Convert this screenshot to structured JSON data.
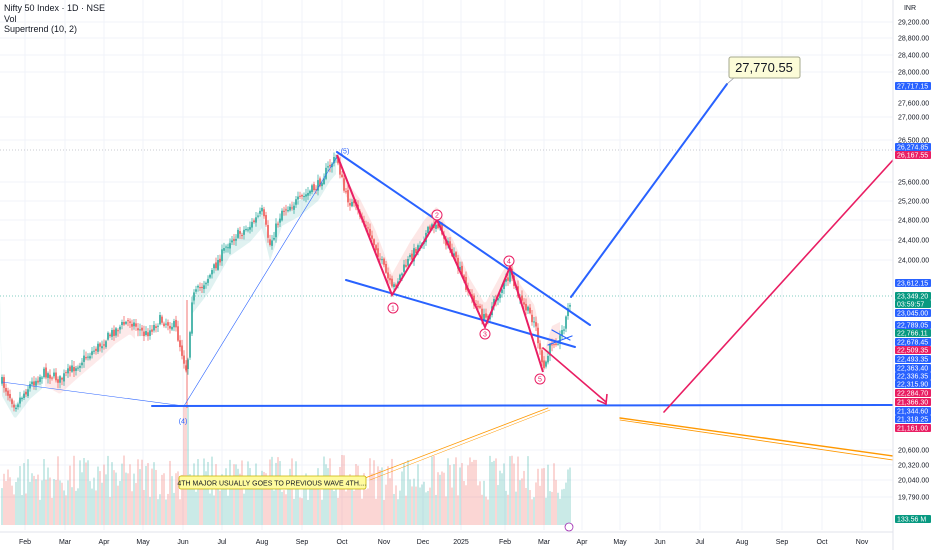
{
  "header": {
    "symbol_line": "Nifty 50 Index · 1D · NSE",
    "vol_label": "Vol",
    "indicator_label": "Supertrend (10, 2)"
  },
  "chart_data": {
    "type": "candlestick",
    "title": "Nifty 50 Index · 1D · NSE",
    "currency": "INR",
    "y_ticks": [
      29200,
      28800,
      28400,
      28000,
      27600,
      27000,
      26500,
      25600,
      25200,
      24800,
      24400,
      24000,
      20600,
      20320,
      20040,
      19790
    ],
    "x_ticks": [
      "Feb",
      "Mar",
      "Apr",
      "May",
      "Jun",
      "Jul",
      "Aug",
      "Sep",
      "Oct",
      "Nov",
      "Dec",
      "2025",
      "Feb",
      "Mar",
      "Apr",
      "May",
      "Jun",
      "Jul",
      "Aug",
      "Sep",
      "Oct",
      "Nov"
    ],
    "price_badges": [
      {
        "label": "27,717.15",
        "color": "#2962ff"
      },
      {
        "label": "26,274.85",
        "color": "#2962ff"
      },
      {
        "label": "26,167.55",
        "color": "#e91e63"
      },
      {
        "label": "23,612.15",
        "color": "#2962ff"
      },
      {
        "label": "23,349.20",
        "color": "#089981"
      },
      {
        "label": "03:59:57",
        "color": "#089981"
      },
      {
        "label": "23,045.00",
        "color": "#2962ff"
      },
      {
        "label": "22,789.05",
        "color": "#2962ff"
      },
      {
        "label": "22,766.11",
        "color": "#089981"
      },
      {
        "label": "22,678.45",
        "color": "#2962ff"
      },
      {
        "label": "22,509.35",
        "color": "#e91e63"
      },
      {
        "label": "22,493.35",
        "color": "#2962ff"
      },
      {
        "label": "22,363.40",
        "color": "#2962ff"
      },
      {
        "label": "22,336.35",
        "color": "#2962ff"
      },
      {
        "label": "22,315.90",
        "color": "#2962ff"
      },
      {
        "label": "22,284.70",
        "color": "#e91e63"
      },
      {
        "label": "21,366.30",
        "color": "#e91e63"
      },
      {
        "label": "21,344.60",
        "color": "#2962ff"
      },
      {
        "label": "21,318.25",
        "color": "#2962ff"
      },
      {
        "label": "21,161.00",
        "color": "#e91e63"
      },
      {
        "label": "133.56 M",
        "color": "#089981"
      }
    ],
    "wave_labels": [
      {
        "text": "(5)",
        "color": "#2962ff"
      },
      {
        "text": "(4)",
        "color": "#2962ff"
      },
      {
        "text": "1",
        "color": "#e91e63"
      },
      {
        "text": "2",
        "color": "#e91e63"
      },
      {
        "text": "3",
        "color": "#e91e63"
      },
      {
        "text": "4",
        "color": "#e91e63"
      },
      {
        "text": "5",
        "color": "#e91e63"
      }
    ],
    "target_label": "27,770.55",
    "callout_text": "4TH MAJOR USUALLY GOES TO PREVIOUS WAVE 4TH....",
    "colors": {
      "up": "#26a69a",
      "down": "#ef5350",
      "trend": "#2962ff",
      "wave": "#e91e63",
      "alt": "#ff9800"
    }
  }
}
